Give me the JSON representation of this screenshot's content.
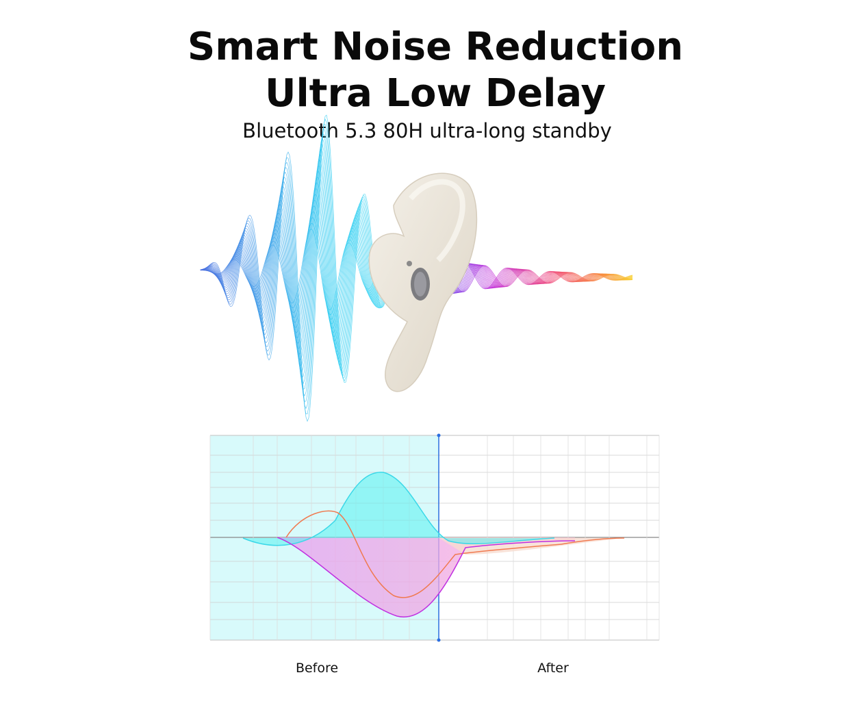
{
  "header": {
    "title_lines": [
      "Smart Noise Reduction",
      "Ultra Low Delay"
    ],
    "subtitle": "Bluetooth 5.3 80H ultra-long standby"
  },
  "comparison": {
    "labels": [
      "Before",
      "After"
    ]
  }
}
